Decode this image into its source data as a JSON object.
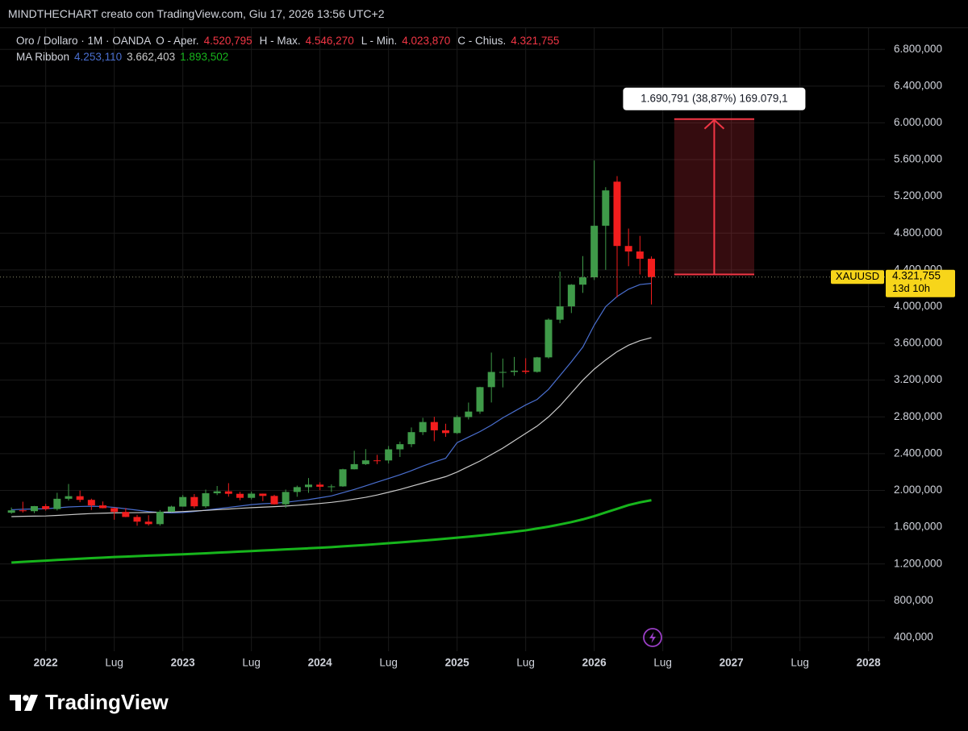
{
  "header": {
    "watermark": "MINDTHECHART creato con TradingView.com, Giu 17, 2026 13:56 UTC+2"
  },
  "footer": {
    "brand": "TradingView"
  },
  "chart_data": {
    "type": "candlestick",
    "title": "Oro / Dollaro · 1M · OANDA",
    "x": [
      "2021-10",
      "2021-11",
      "2021-12",
      "2022-01",
      "2022-02",
      "2022-03",
      "2022-04",
      "2022-05",
      "2022-06",
      "2022-07",
      "2022-08",
      "2022-09",
      "2022-10",
      "2022-11",
      "2022-12",
      "2023-01",
      "2023-02",
      "2023-03",
      "2023-04",
      "2023-05",
      "2023-06",
      "2023-07",
      "2023-08",
      "2023-09",
      "2023-10",
      "2023-11",
      "2023-12",
      "2024-01",
      "2024-02",
      "2024-03",
      "2024-04",
      "2024-05",
      "2024-06",
      "2024-07",
      "2024-08",
      "2024-09",
      "2024-10",
      "2024-11",
      "2024-12",
      "2025-01",
      "2025-02",
      "2025-03",
      "2025-04",
      "2025-05",
      "2025-06",
      "2025-07",
      "2025-08",
      "2025-09",
      "2025-10",
      "2025-11",
      "2025-12",
      "2026-01",
      "2026-02",
      "2026-03",
      "2026-04",
      "2026-05",
      "2026-06"
    ],
    "open": [
      1757,
      1783,
      1774,
      1829,
      1797,
      1909,
      1937,
      1897,
      1837,
      1807,
      1766,
      1711,
      1660,
      1633,
      1768,
      1824,
      1928,
      1827,
      1969,
      1990,
      1963,
      1919,
      1965,
      1940,
      1849,
      1983,
      2036,
      2063,
      2040,
      2044,
      2230,
      2286,
      2327,
      2326,
      2447,
      2503,
      2634,
      2744,
      2654,
      2624,
      2798,
      2858,
      3124,
      3289,
      3289,
      3303,
      3290,
      3448,
      3858,
      4003,
      4239,
      4319,
      4880,
      5360,
      4660,
      4600,
      4520.795
    ],
    "high": [
      1814,
      1877,
      1831,
      1853,
      1974,
      2070,
      1998,
      1910,
      1879,
      1814,
      1808,
      1735,
      1730,
      1786,
      1833,
      1949,
      1960,
      2009,
      2048,
      2079,
      1985,
      1987,
      1966,
      1953,
      2009,
      2052,
      2135,
      2088,
      2065,
      2236,
      2431,
      2450,
      2387,
      2483,
      2531,
      2685,
      2790,
      2801,
      2726,
      2817,
      2956,
      3128,
      3500,
      3435,
      3452,
      3439,
      3453,
      3871,
      4381,
      4245,
      4550,
      5590,
      5300,
      5420,
      4850,
      4770,
      4546.27
    ],
    "low": [
      1746,
      1759,
      1753,
      1780,
      1781,
      1890,
      1872,
      1787,
      1805,
      1681,
      1709,
      1615,
      1617,
      1616,
      1765,
      1823,
      1805,
      1809,
      1949,
      1932,
      1893,
      1902,
      1884,
      1846,
      1810,
      1931,
      1974,
      2002,
      1984,
      2039,
      2228,
      2277,
      2286,
      2293,
      2364,
      2471,
      2603,
      2536,
      2583,
      2614,
      2772,
      2833,
      2957,
      3121,
      3247,
      3268,
      3282,
      3436,
      3819,
      3930,
      4150,
      4290,
      4400,
      4100,
      4440,
      4350,
      4023.87
    ],
    "close": [
      1783,
      1774,
      1829,
      1797,
      1909,
      1937,
      1897,
      1837,
      1807,
      1766,
      1711,
      1660,
      1633,
      1768,
      1824,
      1928,
      1827,
      1969,
      1990,
      1963,
      1919,
      1965,
      1940,
      1849,
      1983,
      2036,
      2063,
      2040,
      2044,
      2230,
      2286,
      2327,
      2326,
      2447,
      2503,
      2634,
      2744,
      2654,
      2624,
      2798,
      2858,
      3124,
      3289,
      3289,
      3303,
      3290,
      3448,
      3858,
      4003,
      4239,
      4319,
      4880,
      5265,
      4660,
      4600,
      4520.795,
      4321.755
    ],
    "up_color": "#3f9a49",
    "down_color": "#f21d1d",
    "series": [
      {
        "color": "#4a6fd0",
        "values": [
          1790,
          1795,
          1798,
          1800,
          1810,
          1820,
          1825,
          1828,
          1825,
          1815,
          1800,
          1785,
          1770,
          1760,
          1755,
          1760,
          1770,
          1785,
          1800,
          1815,
          1830,
          1845,
          1855,
          1860,
          1870,
          1885,
          1900,
          1920,
          1940,
          1975,
          2010,
          2050,
          2090,
          2130,
          2170,
          2215,
          2265,
          2310,
          2350,
          2520,
          2580,
          2640,
          2710,
          2790,
          2860,
          2930,
          2990,
          3100,
          3250,
          3400,
          3560,
          3800,
          4000,
          4110,
          4190,
          4240,
          4253.11
        ]
      },
      {
        "color": "#c9c9c9",
        "values": [
          1715,
          1718,
          1720,
          1722,
          1728,
          1735,
          1742,
          1748,
          1752,
          1755,
          1757,
          1758,
          1760,
          1762,
          1765,
          1770,
          1776,
          1782,
          1790,
          1797,
          1805,
          1812,
          1818,
          1823,
          1830,
          1838,
          1848,
          1858,
          1870,
          1885,
          1905,
          1925,
          1950,
          1980,
          2010,
          2045,
          2080,
          2115,
          2150,
          2200,
          2260,
          2320,
          2390,
          2460,
          2540,
          2620,
          2700,
          2800,
          2920,
          3060,
          3200,
          3320,
          3420,
          3510,
          3580,
          3630,
          3662.403
        ]
      },
      {
        "color": "#17b51c",
        "values": [
          1215,
          1222,
          1229,
          1236,
          1243,
          1250,
          1257,
          1263,
          1269,
          1275,
          1280,
          1285,
          1290,
          1295,
          1300,
          1305,
          1310,
          1316,
          1322,
          1328,
          1334,
          1340,
          1346,
          1352,
          1358,
          1364,
          1370,
          1376,
          1383,
          1391,
          1399,
          1407,
          1416,
          1425,
          1434,
          1444,
          1454,
          1464,
          1475,
          1486,
          1497,
          1509,
          1522,
          1536,
          1550,
          1565,
          1585,
          1605,
          1630,
          1655,
          1685,
          1720,
          1760,
          1800,
          1840,
          1870,
          1893.502
        ]
      }
    ],
    "ohlc_legend": {
      "value_color": "#f23645",
      "fields": [
        {
          "name": "O - Aper.",
          "label": "4.520,795"
        },
        {
          "name": "H - Max.",
          "label": "4.546,270"
        },
        {
          "name": "L - Min.",
          "label": "4.023,870"
        },
        {
          "name": "C - Chius.",
          "label": "4.321,755"
        }
      ]
    },
    "ma_legend": {
      "name": "MA Ribbon",
      "labels": [
        "4.253,110",
        "3.662,403",
        "1.893,502"
      ]
    },
    "price_tag": {
      "symbol": "XAUUSD",
      "label": "4.321,755",
      "countdown": "13d 10h",
      "color": "#f7d51a"
    },
    "measure": {
      "label": "1.690,791 (38,87%) 169.079,1",
      "from": 4350,
      "to": 6040.791,
      "x": [
        "2026-08",
        "2027-03"
      ],
      "color": "#f23645"
    },
    "xlim": [
      "2021-09",
      "2028-03"
    ],
    "xticks": [
      {
        "value": "2022-01",
        "label": "2022"
      },
      {
        "value": "2022-07",
        "label": "Lug"
      },
      {
        "value": "2023-01",
        "label": "2023"
      },
      {
        "value": "2023-07",
        "label": "Lug"
      },
      {
        "value": "2024-01",
        "label": "2024"
      },
      {
        "value": "2024-07",
        "label": "Lug"
      },
      {
        "value": "2025-01",
        "label": "2025"
      },
      {
        "value": "2025-07",
        "label": "Lug"
      },
      {
        "value": "2026-01",
        "label": "2026"
      },
      {
        "value": "2026-07",
        "label": "Lug"
      },
      {
        "value": "2027-01",
        "label": "2027"
      },
      {
        "value": "2027-07",
        "label": "Lug"
      },
      {
        "value": "2028-01",
        "label": "2028"
      }
    ],
    "ylim": [
      250,
      7030
    ],
    "yticks": [
      {
        "value": 400,
        "label": "400,000"
      },
      {
        "value": 800,
        "label": "800,000"
      },
      {
        "value": 1200,
        "label": "1.200,000"
      },
      {
        "value": 1600,
        "label": "1.600,000"
      },
      {
        "value": 2000,
        "label": "2.000,000"
      },
      {
        "value": 2400,
        "label": "2.400,000"
      },
      {
        "value": 2800,
        "label": "2.800,000"
      },
      {
        "value": 3200,
        "label": "3.200,000"
      },
      {
        "value": 3600,
        "label": "3.600,000"
      },
      {
        "value": 4000,
        "label": "4.000,000"
      },
      {
        "value": 4400,
        "label": "4.400,000"
      },
      {
        "value": 4800,
        "label": "4.800,000"
      },
      {
        "value": 5200,
        "label": "5.200,000"
      },
      {
        "value": 5600,
        "label": "5.600,000"
      },
      {
        "value": 6000,
        "label": "6.000,000"
      },
      {
        "value": 6400,
        "label": "6.400,000"
      },
      {
        "value": 6800,
        "label": "6.800,000"
      }
    ],
    "grid": true
  }
}
